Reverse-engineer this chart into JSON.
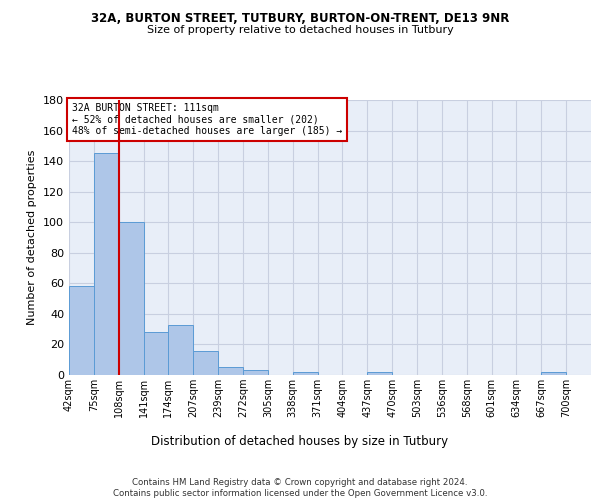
{
  "title_line1": "32A, BURTON STREET, TUTBURY, BURTON-ON-TRENT, DE13 9NR",
  "title_line2": "Size of property relative to detached houses in Tutbury",
  "xlabel": "Distribution of detached houses by size in Tutbury",
  "ylabel": "Number of detached properties",
  "footer": "Contains HM Land Registry data © Crown copyright and database right 2024.\nContains public sector information licensed under the Open Government Licence v3.0.",
  "bin_labels": [
    "42sqm",
    "75sqm",
    "108sqm",
    "141sqm",
    "174sqm",
    "207sqm",
    "239sqm",
    "272sqm",
    "305sqm",
    "338sqm",
    "371sqm",
    "404sqm",
    "437sqm",
    "470sqm",
    "503sqm",
    "536sqm",
    "568sqm",
    "601sqm",
    "634sqm",
    "667sqm",
    "700sqm"
  ],
  "bar_heights": [
    58,
    145,
    100,
    28,
    33,
    16,
    5,
    3,
    0,
    2,
    0,
    0,
    2,
    0,
    0,
    0,
    0,
    0,
    0,
    2,
    0
  ],
  "bar_color": "#aec6e8",
  "bar_edge_color": "#5b9bd5",
  "grid_color": "#c8cfe0",
  "background_color": "#e8eef8",
  "annotation_box_text": "32A BURTON STREET: 111sqm\n← 52% of detached houses are smaller (202)\n48% of semi-detached houses are larger (185) →",
  "annotation_box_color": "#ffffff",
  "annotation_line_color": "#cc0000",
  "annotation_rect_color": "#cc0000",
  "ylim": [
    0,
    180
  ],
  "yticks": [
    0,
    20,
    40,
    60,
    80,
    100,
    120,
    140,
    160,
    180
  ],
  "red_line_x": 2.0
}
